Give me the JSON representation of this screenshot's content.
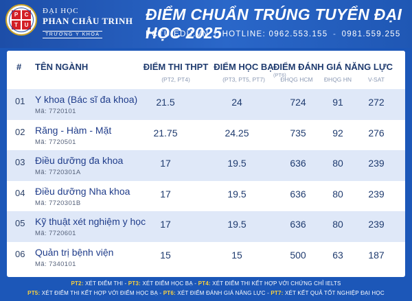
{
  "header": {
    "logo_letters": [
      "P",
      "C",
      "T",
      "U"
    ],
    "uni_line1": "ĐẠI HỌC",
    "uni_line2": "PHAN CHÂU TRINH",
    "uni_line3": "TRƯỜNG Y KHOA",
    "title": "ĐIỂM CHUẨN TRÚNG TUYỂN ĐẠI HỌC 2025",
    "website": "PCTU.EDU.VN",
    "hotline_label": "HOTLINE:",
    "hotline1": "0962.553.155",
    "hotline2": "0981.559.255"
  },
  "table": {
    "headers": {
      "idx": "#",
      "major": "TÊN NGÀNH",
      "thpt": "ĐIỂM THI THPT",
      "thpt_sub": "(PT2, PT4)",
      "hocba": "ĐIỂM HỌC BẠ",
      "hocba_sub": "(PT3, PT5, PT7)",
      "dgnl": "ĐIỂM ĐÁNH GIÁ NĂNG LỰC",
      "dgnl_sup": "(PT6)",
      "hcm": "ĐHQG HCM",
      "hn": "ĐHQG HN",
      "vsat": "V-SAT"
    },
    "rows": [
      {
        "idx": "01",
        "major": "Y khoa (Bác sĩ đa khoa)",
        "code": "Mã: 7720101",
        "thpt": "21.5",
        "hocba": "24",
        "hcm": "724",
        "hn": "91",
        "vsat": "272"
      },
      {
        "idx": "02",
        "major": "Răng - Hàm - Mặt",
        "code": "Mã: 7720501",
        "thpt": "21.75",
        "hocba": "24.25",
        "hcm": "735",
        "hn": "92",
        "vsat": "276"
      },
      {
        "idx": "03",
        "major": "Điều dưỡng đa khoa",
        "code": "Mã: 7720301A",
        "thpt": "17",
        "hocba": "19.5",
        "hcm": "636",
        "hn": "80",
        "vsat": "239"
      },
      {
        "idx": "04",
        "major": "Điều dưỡng Nha khoa",
        "code": "Mã: 7720301B",
        "thpt": "17",
        "hocba": "19.5",
        "hcm": "636",
        "hn": "80",
        "vsat": "239"
      },
      {
        "idx": "05",
        "major": "Kỹ thuật xét nghiệm y học",
        "code": "Mã: 7720601",
        "thpt": "17",
        "hocba": "19.5",
        "hcm": "636",
        "hn": "80",
        "vsat": "239"
      },
      {
        "idx": "06",
        "major": "Quản trị bệnh viện",
        "code": "Mã: 7340101",
        "thpt": "15",
        "hocba": "15",
        "hcm": "500",
        "hn": "63",
        "vsat": "187"
      }
    ]
  },
  "footer": {
    "pt2_key": "PT2:",
    "pt2_text": "XÉT ĐIỂM THI",
    "pt3_key": "PT3:",
    "pt3_text": "XÉT ĐIỂM HỌC BẠ",
    "pt4_key": "PT4:",
    "pt4_text": "XÉT ĐIỂM THI KẾT HỢP VỚI CHỨNG CHỈ IELTS",
    "pt5_key": "PT5:",
    "pt5_text": "XÉT ĐIỂM THI KẾT HỢP VỚI ĐIỂM HỌC BẠ",
    "pt6_key": "PT6:",
    "pt6_text": "XÉT ĐIỂM ĐÁNH GIÁ NĂNG LỰC",
    "pt7_key": "PT7:",
    "pt7_text": "XÉT KẾT QUẢ TỐT NGHIỆP ĐẠI HỌC"
  },
  "colors": {
    "background": "#1c57b8",
    "row_alt": "#dfe8f8",
    "text_dark": "#1e3a6e",
    "footer_key": "#ffd43b"
  }
}
